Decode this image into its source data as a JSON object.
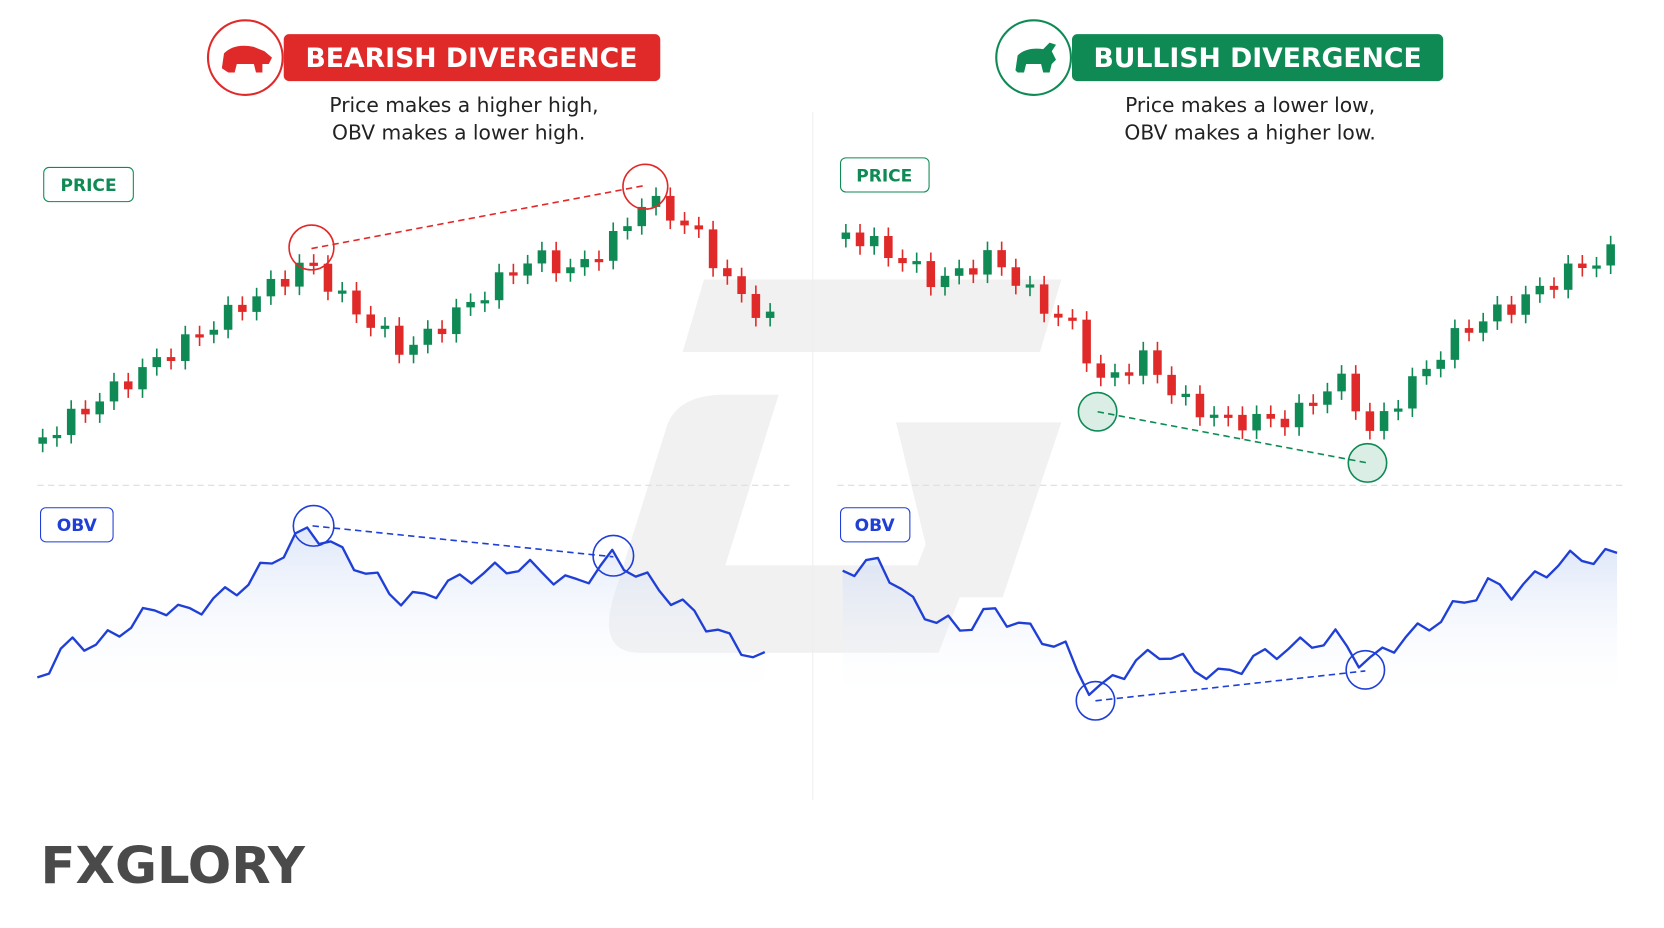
{
  "left": {
    "title": "BEARISH DIVERGENCE",
    "subtitle": [
      "Price makes a higher high,",
      "OBV makes a lower high."
    ],
    "price_label": "PRICE",
    "obv_label": "OBV"
  },
  "right": {
    "title": "BULLISH DIVERGENCE",
    "subtitle": [
      "Price makes a lower low,",
      "OBV makes a higher low."
    ],
    "price_label": "PRICE",
    "obv_label": "OBV"
  },
  "logo": "FXGLORY"
}
